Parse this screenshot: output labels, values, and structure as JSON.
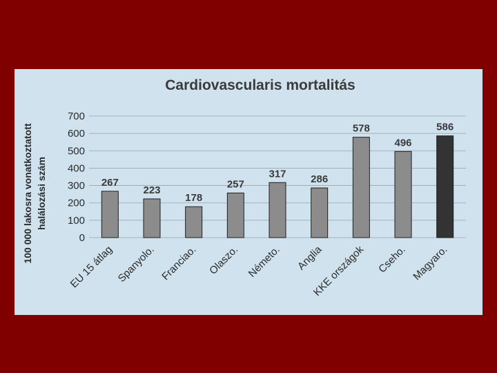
{
  "slide": {
    "background": "#800000",
    "panel_color": "#cfe2ee"
  },
  "chart_data": {
    "type": "bar",
    "title": "Cardiovascularis mortalitás",
    "ylabel_lines": [
      "100 000 lakosra vonatkoztatott",
      "halálozási szám"
    ],
    "xlabel": "",
    "categories": [
      "EU 15 átlag",
      "Spanyolo.",
      "Franciao.",
      "Olaszo.",
      "Németo.",
      "Anglia",
      "KKE országok",
      "Cseho.",
      "Magyaro."
    ],
    "values": [
      267,
      223,
      178,
      257,
      317,
      286,
      578,
      496,
      586
    ],
    "data_labels": [
      "267",
      "223",
      "178",
      "257",
      "317",
      "286",
      "578",
      "496",
      "586"
    ],
    "ylim": [
      0,
      700
    ],
    "yticks": [
      0,
      100,
      200,
      300,
      400,
      500,
      600,
      700
    ],
    "grid": true,
    "bar_color": "#8c8c8c",
    "highlight_color": "#333333",
    "highlight_category": "Magyaro."
  }
}
